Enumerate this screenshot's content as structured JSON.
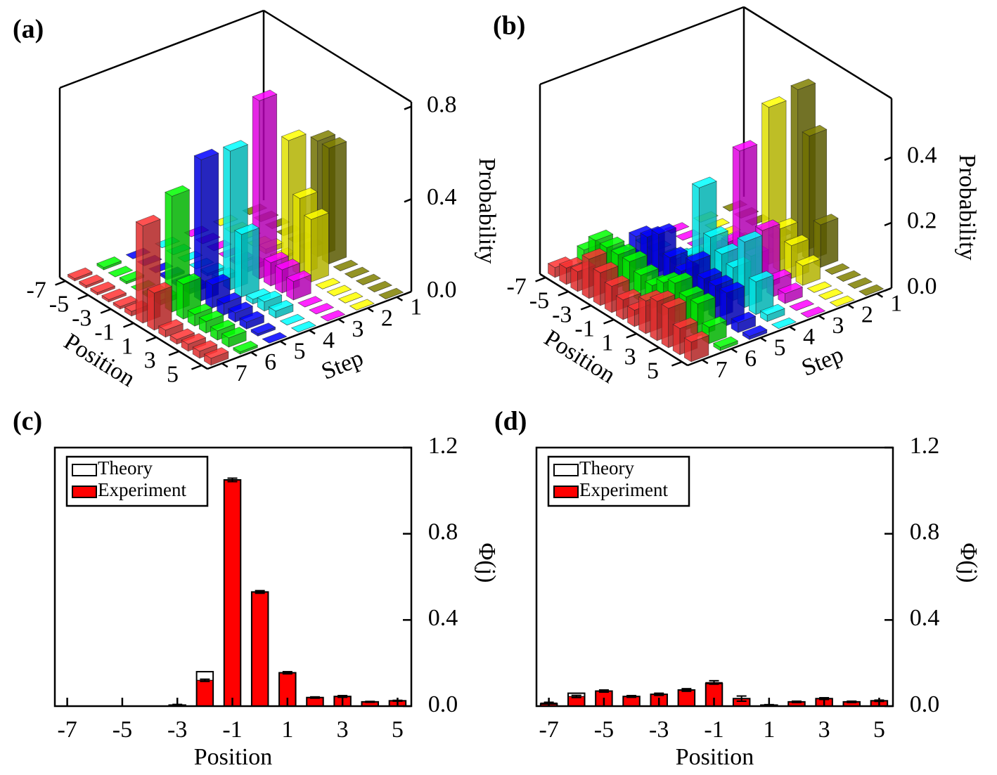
{
  "chart_data": [
    {
      "type": "bar3d",
      "title": "(a)",
      "xlabel": "Position",
      "ylabel": "Step",
      "zlabel": "Probability",
      "x": [
        -7,
        -6,
        -5,
        -4,
        -3,
        -2,
        -1,
        0,
        1,
        2,
        3,
        4,
        5
      ],
      "xticks": [
        -7,
        -5,
        -3,
        -1,
        1,
        3,
        5
      ],
      "steps": [
        1,
        2,
        3,
        4,
        5,
        6,
        7
      ],
      "zlim": [
        0,
        0.82
      ],
      "zticks": [
        {
          "value": 0,
          "label": "0.0"
        },
        {
          "value": 0.4,
          "label": "0.4"
        },
        {
          "value": 0.8,
          "label": "0.8"
        }
      ],
      "series": [
        {
          "color": "#808000",
          "values": [
            0,
            0,
            0,
            0,
            0,
            0,
            0.5,
            0.5,
            0,
            0,
            0,
            0,
            0
          ]
        },
        {
          "color": "#ffff00",
          "values": [
            0,
            0,
            0,
            0,
            0.02,
            0.01,
            0.55,
            0.33,
            0.27,
            0,
            0,
            0,
            0
          ]
        },
        {
          "color": "#ff00ff",
          "values": [
            0,
            0,
            0,
            0,
            0.01,
            0.02,
            0.77,
            0.1,
            0.1,
            0.08,
            0,
            0,
            0
          ]
        },
        {
          "color": "#00ffff",
          "values": [
            0,
            0,
            0,
            0,
            0.01,
            0.02,
            0.6,
            0.27,
            0.02,
            0.04,
            0.03,
            0,
            0
          ]
        },
        {
          "color": "#0000ff",
          "values": [
            0,
            0,
            0,
            0.01,
            0.01,
            0.02,
            0.61,
            0.1,
            0.05,
            0.04,
            0.03,
            0.01,
            0
          ]
        },
        {
          "color": "#00ff00",
          "values": [
            0.01,
            0,
            0.01,
            0,
            0.01,
            0.02,
            0.5,
            0.15,
            0.05,
            0.05,
            0.04,
            0.04,
            0.01
          ]
        },
        {
          "color": "#ff3333",
          "values": [
            0.01,
            0.01,
            0.01,
            0.01,
            0.01,
            0.02,
            0.42,
            0.16,
            0.03,
            0.02,
            0.03,
            0.03,
            0.03
          ]
        }
      ]
    },
    {
      "type": "bar3d",
      "title": "(b)",
      "xlabel": "Position",
      "ylabel": "Step",
      "zlabel": "Probability",
      "x": [
        -7,
        -6,
        -5,
        -4,
        -3,
        -2,
        -1,
        0,
        1,
        2,
        3,
        4,
        5
      ],
      "xticks": [
        -7,
        -5,
        -3,
        -1,
        1,
        3,
        5
      ],
      "steps": [
        1,
        2,
        3,
        4,
        5,
        6,
        7
      ],
      "zlim": [
        0,
        0.58
      ],
      "zticks": [
        {
          "value": 0,
          "label": "0.0"
        },
        {
          "value": 0.2,
          "label": "0.2"
        },
        {
          "value": 0.4,
          "label": "0.4"
        }
      ],
      "series": [
        {
          "color": "#808000",
          "values": [
            0,
            0,
            0,
            0,
            0,
            0,
            0.5,
            0.38,
            0.13,
            0,
            0,
            0,
            0
          ]
        },
        {
          "color": "#ffff00",
          "values": [
            0,
            0,
            0,
            0,
            0,
            0,
            0.48,
            0.13,
            0.1,
            0.06,
            0,
            0,
            0
          ]
        },
        {
          "color": "#ff00ff",
          "values": [
            0,
            0,
            0,
            0,
            0.04,
            0.08,
            0.38,
            0.08,
            0.18,
            0.05,
            0.03,
            0,
            0
          ]
        },
        {
          "color": "#00ffff",
          "values": [
            0,
            0,
            0,
            0.02,
            0.05,
            0.28,
            0.15,
            0.12,
            0.1,
            0.2,
            0.1,
            0.02,
            0
          ]
        },
        {
          "color": "#0000ff",
          "values": [
            0,
            0.01,
            0.1,
            0.12,
            0.15,
            0.1,
            0.08,
            0.13,
            0.1,
            0.1,
            0.1,
            0.03,
            0.01
          ]
        },
        {
          "color": "#00ff00",
          "values": [
            0.05,
            0.1,
            0.1,
            0.1,
            0.1,
            0.08,
            0.07,
            0.1,
            0.12,
            0.1,
            0.1,
            0.05,
            0.01
          ]
        },
        {
          "color": "#ff3333",
          "values": [
            0.03,
            0.05,
            0.06,
            0.12,
            0.1,
            0.08,
            0.06,
            0.05,
            0.1,
            0.12,
            0.12,
            0.08,
            0.06
          ]
        }
      ]
    },
    {
      "type": "bar",
      "title": "(c)",
      "xlabel": "Position",
      "ylabel": "Φ(j)",
      "x": [
        -7,
        -6,
        -5,
        -4,
        -3,
        -2,
        -1,
        0,
        1,
        2,
        3,
        4,
        5
      ],
      "xlim": [
        -7.45,
        5.5
      ],
      "xticks": [
        -7,
        -5,
        -3,
        -1,
        1,
        3,
        5
      ],
      "ylim": [
        0,
        1.2
      ],
      "yticks": [
        {
          "value": 0,
          "label": "0.0"
        },
        {
          "value": 0.4,
          "label": "0.4"
        },
        {
          "value": 0.8,
          "label": "0.8"
        },
        {
          "value": 1.2,
          "label": "1.2"
        }
      ],
      "legend": "upper left",
      "series": [
        {
          "name": "Experiment",
          "color": "#ff0000",
          "values": [
            0,
            0,
            0,
            0,
            0.005,
            0.12,
            1.05,
            0.53,
            0.155,
            0.04,
            0.045,
            0.02,
            0.025
          ],
          "errors": [
            0,
            0,
            0,
            0,
            0.003,
            0.005,
            0.008,
            0.006,
            0.005,
            0.003,
            0.004,
            0.002,
            0.002
          ]
        },
        {
          "name": "Theory",
          "color": "#000000",
          "values": [
            0,
            0,
            0,
            0,
            0.005,
            0.16,
            1.05,
            0.53,
            0.155,
            0.04,
            0.045,
            0.02,
            0.025
          ]
        }
      ]
    },
    {
      "type": "bar",
      "title": "(d)",
      "xlabel": "Position",
      "ylabel": "Φ(j)",
      "x": [
        -7,
        -6,
        -5,
        -4,
        -3,
        -2,
        -1,
        0,
        1,
        2,
        3,
        4,
        5
      ],
      "xlim": [
        -7.45,
        5.5
      ],
      "xticks": [
        -7,
        -5,
        -3,
        -1,
        1,
        3,
        5
      ],
      "ylim": [
        0,
        1.2
      ],
      "yticks": [
        {
          "value": 0,
          "label": "0.0"
        },
        {
          "value": 0.4,
          "label": "0.4"
        },
        {
          "value": 0.8,
          "label": "0.8"
        },
        {
          "value": 1.2,
          "label": "1.2"
        }
      ],
      "legend": "upper left",
      "series": [
        {
          "name": "Experiment",
          "color": "#ff0000",
          "values": [
            0.015,
            0.045,
            0.07,
            0.045,
            0.055,
            0.075,
            0.11,
            0.035,
            0.005,
            0.02,
            0.035,
            0.02,
            0.025
          ],
          "errors": [
            0.003,
            0.005,
            0.005,
            0.004,
            0.005,
            0.006,
            0.008,
            0.012,
            0.002,
            0.003,
            0.004,
            0.003,
            0.003
          ]
        },
        {
          "name": "Theory",
          "color": "#000000",
          "values": [
            0.01,
            0.06,
            0.07,
            0.045,
            0.055,
            0.075,
            0.105,
            0.035,
            0.005,
            0.02,
            0.035,
            0.02,
            0.025
          ]
        }
      ]
    }
  ]
}
